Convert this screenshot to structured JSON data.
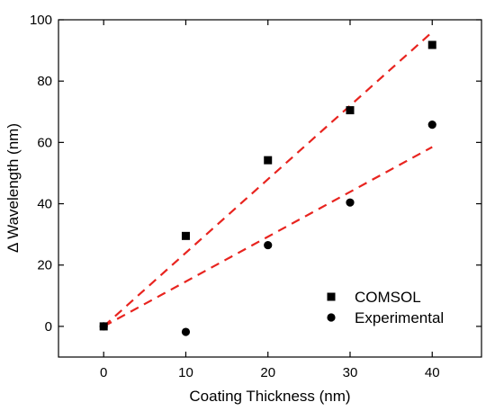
{
  "chart_data": {
    "type": "scatter",
    "title": "",
    "xlabel": "Coating Thickness (nm)",
    "ylabel": "Δ Wavelength (nm)",
    "xlim": [
      -5.5,
      46
    ],
    "ylim": [
      -10,
      100
    ],
    "xticks": [
      0,
      10,
      20,
      30,
      40
    ],
    "yticks": [
      0,
      20,
      40,
      60,
      80,
      100
    ],
    "grid": false,
    "legend_position": "bottom-right",
    "series": [
      {
        "name": "COMSOL",
        "marker": "square",
        "color": "#000000",
        "x": [
          0,
          10,
          20,
          30,
          40
        ],
        "y": [
          0,
          29.5,
          54.2,
          70.5,
          91.8
        ]
      },
      {
        "name": "Experimental",
        "marker": "circle",
        "color": "#000000",
        "x": [
          0,
          10,
          20,
          30,
          40
        ],
        "y": [
          0,
          -1.8,
          26.5,
          40.4,
          65.8
        ]
      }
    ],
    "fits": [
      {
        "series": "COMSOL",
        "color": "#e8241f",
        "style": "dashed",
        "x": [
          0,
          40
        ],
        "y": [
          0,
          96
        ]
      },
      {
        "series": "Experimental",
        "color": "#e8241f",
        "style": "dashed",
        "x": [
          0,
          40
        ],
        "y": [
          0,
          58.5
        ]
      }
    ]
  }
}
